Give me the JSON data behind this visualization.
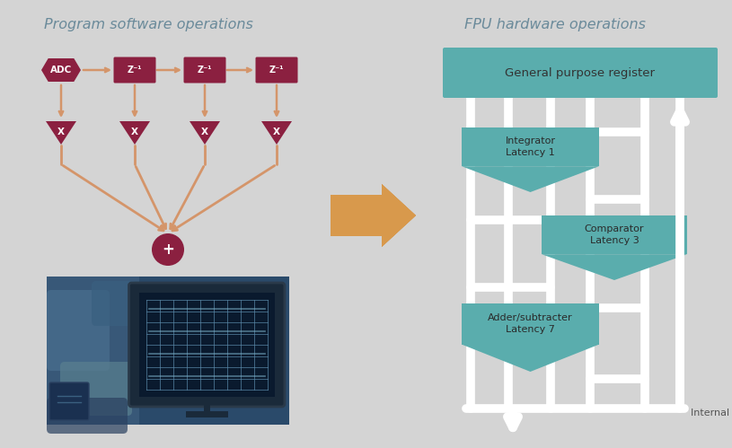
{
  "bg_color": "#d4d4d4",
  "title_left": "Program software operations",
  "title_right": "FPU hardware operations",
  "title_color": "#6a8a9a",
  "title_fontsize": 11.5,
  "dark_red": "#8b2040",
  "salmon": "#c87050",
  "teal": "#5aadad",
  "white": "#ffffff",
  "arrow_color": "#d4956a",
  "gpr_label": "General purpose register",
  "integrator_label": "Integrator\nLatency 1",
  "comparator_label": "Comparator\nLatency 3",
  "adder_label": "Adder/subtracter\nLatency 7",
  "bus_label": "Internal bus",
  "adc_label": "ADC",
  "z_label": "Z⁻¹",
  "x_label": "X",
  "plus_label": "+"
}
